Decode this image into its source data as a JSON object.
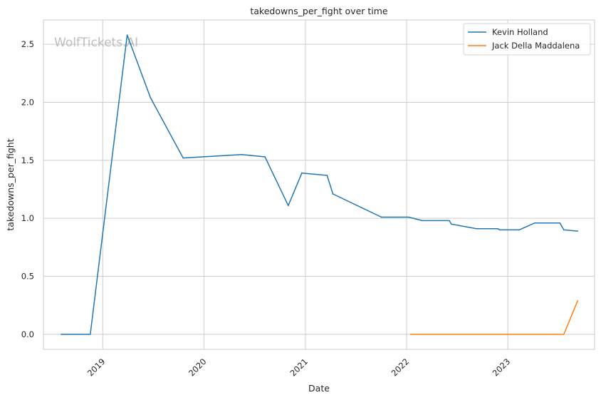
{
  "chart_data": {
    "type": "line",
    "title": "takedowns_per_fight over time",
    "xlabel": "Date",
    "ylabel": "takedowns_per_fight",
    "watermark": "WolfTickets.AI",
    "x_ticks": [
      "2019",
      "2020",
      "2021",
      "2022",
      "2023"
    ],
    "y_ticks": [
      "0.0",
      "0.5",
      "1.0",
      "1.5",
      "2.0",
      "2.5"
    ],
    "xlim": [
      "2018-06-01",
      "2023-11-10"
    ],
    "ylim": [
      -0.13,
      2.71
    ],
    "grid": true,
    "legend_position": "top-right",
    "series": [
      {
        "name": "Kevin Holland",
        "color": "#1f77b4",
        "points": [
          [
            "2018-08-04",
            0.0
          ],
          [
            "2018-11-17",
            0.0
          ],
          [
            "2019-03-30",
            2.58
          ],
          [
            "2019-06-22",
            2.04
          ],
          [
            "2019-10-18",
            1.52
          ],
          [
            "2020-05-16",
            1.55
          ],
          [
            "2020-08-08",
            1.53
          ],
          [
            "2020-10-31",
            1.11
          ],
          [
            "2020-12-19",
            1.39
          ],
          [
            "2021-03-20",
            1.37
          ],
          [
            "2021-04-10",
            1.21
          ],
          [
            "2021-10-02",
            1.01
          ],
          [
            "2022-01-08",
            1.01
          ],
          [
            "2022-02-26",
            0.98
          ],
          [
            "2022-06-04",
            0.98
          ],
          [
            "2022-06-11",
            0.95
          ],
          [
            "2022-09-10",
            0.91
          ],
          [
            "2022-11-26",
            0.91
          ],
          [
            "2022-12-03",
            0.9
          ],
          [
            "2023-02-11",
            0.9
          ],
          [
            "2023-04-08",
            0.96
          ],
          [
            "2023-07-08",
            0.96
          ],
          [
            "2023-07-22",
            0.9
          ],
          [
            "2023-09-10",
            0.89
          ]
        ]
      },
      {
        "name": "Jack Della Maddalena",
        "color": "#ff7f0e",
        "points": [
          [
            "2022-01-15",
            0.0
          ],
          [
            "2023-07-22",
            0.0
          ],
          [
            "2023-09-10",
            0.29
          ]
        ]
      }
    ]
  }
}
